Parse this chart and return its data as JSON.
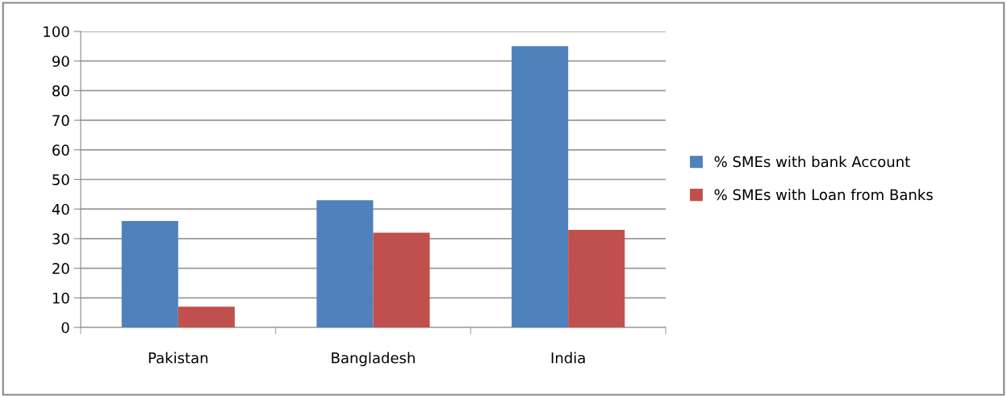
{
  "chart_data": {
    "type": "bar",
    "categories": [
      "Pakistan",
      "Bangladesh",
      "India"
    ],
    "series": [
      {
        "name": "% SMEs with bank Account",
        "color": "#4f81bd",
        "values": [
          36,
          43,
          95
        ]
      },
      {
        "name": "% SMEs with Loan from Banks",
        "color": "#c0504d",
        "values": [
          7,
          32,
          33
        ]
      }
    ],
    "ylim": [
      0,
      100
    ],
    "yticks": [
      0,
      10,
      20,
      30,
      40,
      50,
      60,
      70,
      80,
      90,
      100
    ],
    "grid": "y",
    "legend": "right"
  }
}
